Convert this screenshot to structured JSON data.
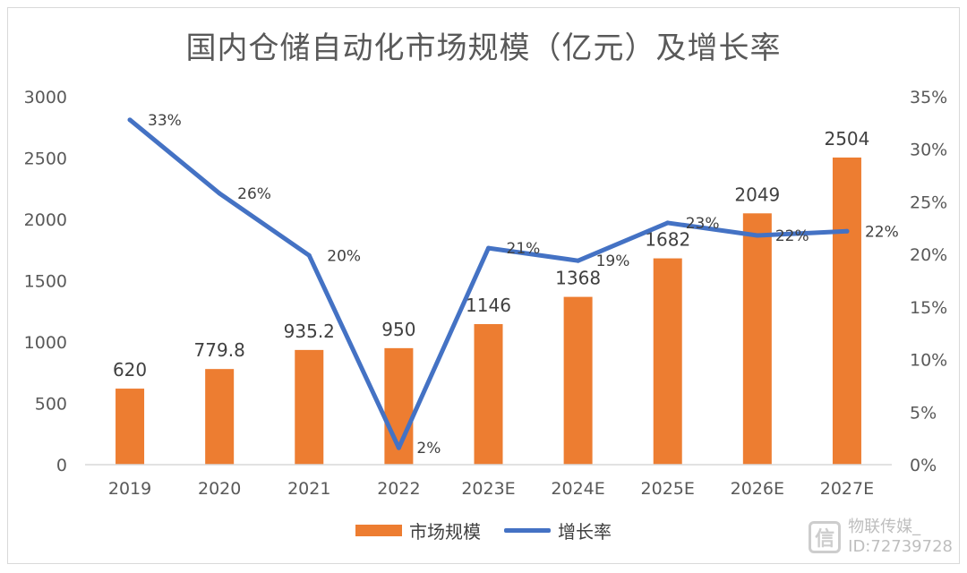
{
  "chart_data": {
    "type": "bar+line",
    "title": "国内仓储自动化市场规模（亿元）及增长率",
    "categories": [
      "2019",
      "2020",
      "2021",
      "2022",
      "2023E",
      "2024E",
      "2025E",
      "2026E",
      "2027E"
    ],
    "series": [
      {
        "name": "市场规模",
        "type": "bar",
        "axis": "left",
        "color": "#ED7D31",
        "values": [
          620,
          779.8,
          935.2,
          950,
          1146,
          1368,
          1682,
          2049,
          2504
        ],
        "labels": [
          "620",
          "779.8",
          "935.2",
          "950",
          "1146",
          "1368",
          "1682",
          "2049",
          "2504"
        ]
      },
      {
        "name": "增长率",
        "type": "line",
        "axis": "right",
        "color": "#4472C4",
        "values": [
          32.8,
          25.8,
          19.9,
          1.6,
          20.6,
          19.4,
          23.0,
          21.8,
          22.2
        ],
        "labels": [
          "33%",
          "26%",
          "20%",
          "2%",
          "21%",
          "19%",
          "23%",
          "22%",
          "22%"
        ]
      }
    ],
    "y_left": {
      "min": 0,
      "max": 3000,
      "ticks": [
        "0",
        "500",
        "1000",
        "1500",
        "2000",
        "2500",
        "3000"
      ]
    },
    "y_right": {
      "min": 0,
      "max": 35,
      "ticks": [
        "0%",
        "5%",
        "10%",
        "15%",
        "20%",
        "25%",
        "30%",
        "35%"
      ]
    },
    "grid": false,
    "legend_position": "bottom"
  },
  "legend": {
    "bar_label": "市场规模",
    "line_label": "增长率"
  },
  "watermark": {
    "line1": "物联传媒_",
    "line2": "ID:72739728"
  }
}
